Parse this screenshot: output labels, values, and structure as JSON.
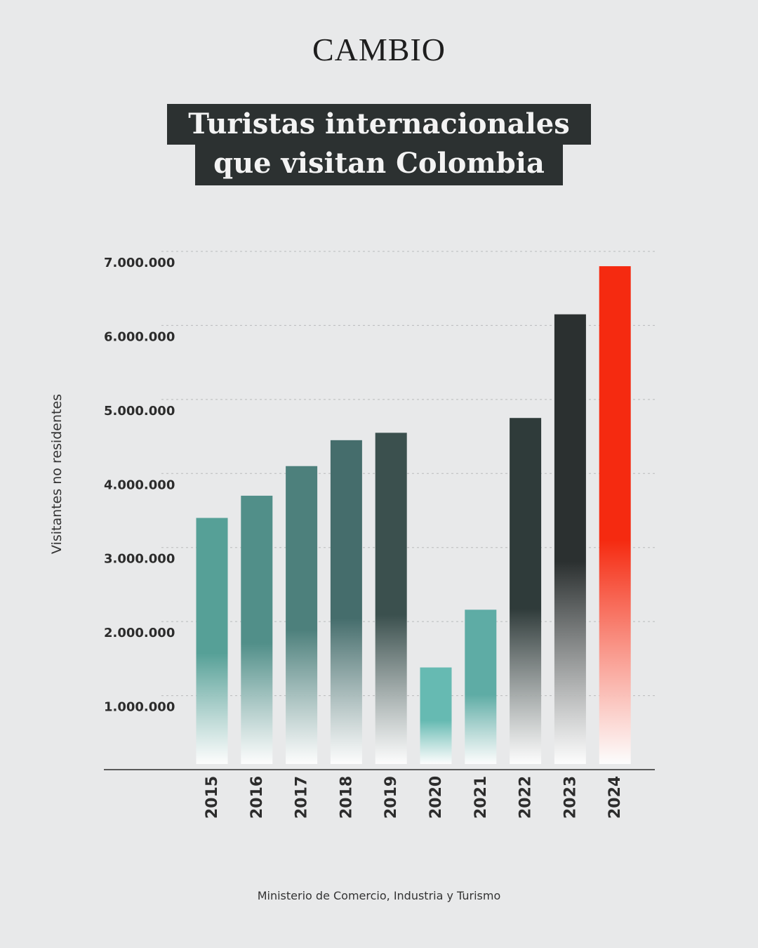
{
  "logo": "CAMBIO",
  "title_line1": "Turistas internacionales",
  "title_line2": "que visitan Colombia",
  "source": "Ministerio de Comercio, Industria y Turismo",
  "chart_data": {
    "type": "bar",
    "ylabel": "Visitantes no residentes",
    "ylim": [
      0,
      7000000
    ],
    "yticks": [
      1000000,
      2000000,
      3000000,
      4000000,
      5000000,
      6000000,
      7000000
    ],
    "ytick_labels": [
      "1.000.000",
      "2.000.000",
      "3.000.000",
      "4.000.000",
      "5.000.000",
      "6.000.000",
      "7.000.000"
    ],
    "grid": true,
    "categories": [
      "2015",
      "2016",
      "2017",
      "2018",
      "2019",
      "2020",
      "2021",
      "2022",
      "2023",
      "2024"
    ],
    "values": [
      3400000,
      3700000,
      4100000,
      4450000,
      4550000,
      1380000,
      2160000,
      4750000,
      6150000,
      6800000
    ],
    "bar_colors": [
      "#56a097",
      "#518f89",
      "#4d807c",
      "#456d6c",
      "#3b504e",
      "#66bab2",
      "#5eaca5",
      "#2f3b3a",
      "#2b3030",
      "#f52a10"
    ]
  }
}
